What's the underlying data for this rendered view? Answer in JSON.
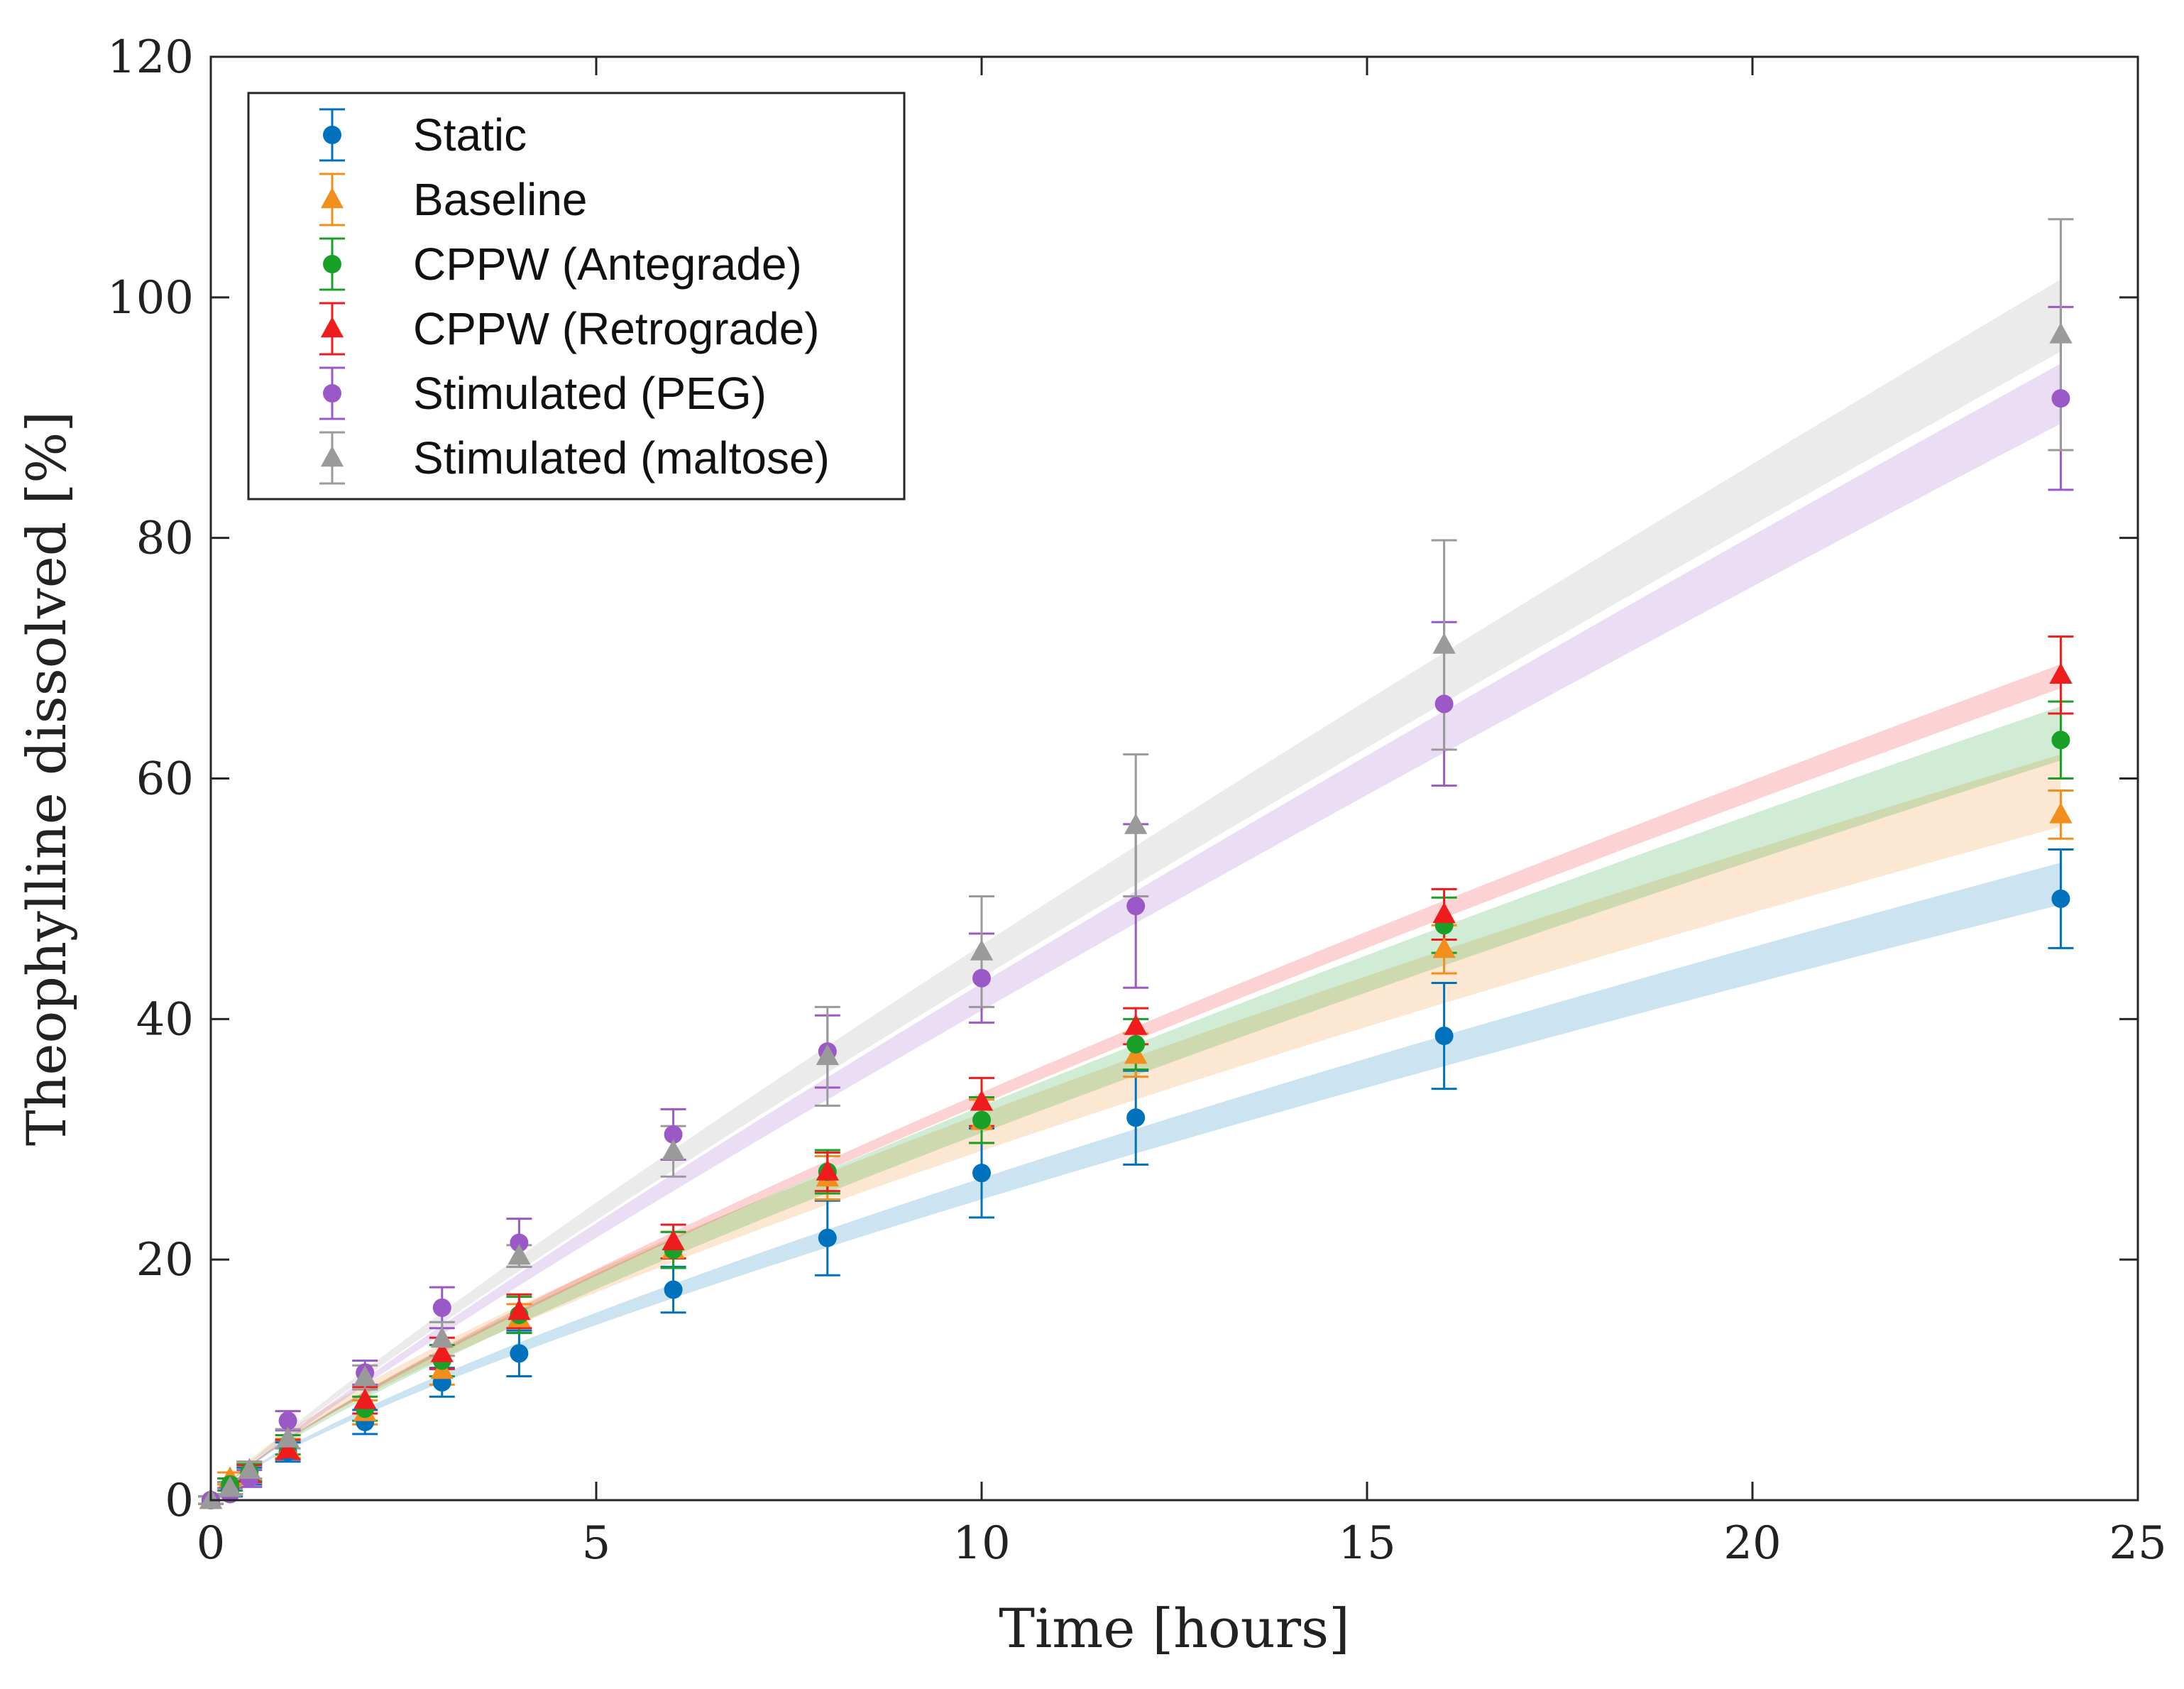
{
  "chart_data": {
    "type": "scatter",
    "title": "",
    "xlabel": "Time [hours]",
    "ylabel": "Theophylline dissolved [%]",
    "xlim": [
      0,
      25
    ],
    "ylim": [
      0,
      120
    ],
    "xticks": [
      0,
      5,
      10,
      15,
      20,
      25
    ],
    "yticks": [
      0,
      20,
      40,
      60,
      80,
      100,
      120
    ],
    "legend_position": "top-left",
    "series": [
      {
        "name": "Static",
        "color": "#0072BD",
        "marker": "circle",
        "x": [
          0,
          0.25,
          0.5,
          1,
          2,
          3,
          4,
          6,
          8,
          10,
          12,
          16,
          24
        ],
        "y": [
          0,
          0.8,
          2.0,
          4.0,
          6.5,
          9.8,
          12.2,
          17.5,
          21.8,
          27.2,
          31.8,
          38.6,
          50.0
        ],
        "err": [
          0.3,
          0.5,
          0.7,
          0.8,
          1.0,
          1.2,
          1.9,
          1.9,
          3.1,
          3.7,
          3.9,
          4.4,
          4.1
        ],
        "band_end": [
          49.5,
          53.0
        ],
        "band_exp": 0.78
      },
      {
        "name": "Baseline",
        "color": "#F28E1C",
        "marker": "triangle",
        "x": [
          0,
          0.25,
          0.5,
          1,
          2,
          3,
          4,
          6,
          8,
          10,
          12,
          16,
          24
        ],
        "y": [
          0,
          1.8,
          2.5,
          4.3,
          7.3,
          10.8,
          15.1,
          20.8,
          26.8,
          31.5,
          37.0,
          45.8,
          57.0
        ],
        "err": [
          0.3,
          0.5,
          0.7,
          0.8,
          1.0,
          1.2,
          1.2,
          1.5,
          1.8,
          1.8,
          1.8,
          2.0,
          2.0
        ],
        "band_end": [
          56.0,
          62.0
        ],
        "band_exp": 0.75
      },
      {
        "name": "CPPW (Antegrade)",
        "color": "#18A028",
        "marker": "circle",
        "x": [
          0,
          0.25,
          0.5,
          1,
          2,
          3,
          4,
          6,
          8,
          10,
          12,
          16,
          24
        ],
        "y": [
          0,
          1.3,
          2.3,
          4.6,
          7.6,
          11.6,
          15.4,
          20.8,
          27.3,
          31.6,
          37.9,
          47.8,
          63.2
        ],
        "err": [
          0.3,
          0.5,
          0.7,
          0.8,
          1.0,
          1.3,
          1.5,
          1.5,
          1.8,
          1.9,
          2.1,
          2.3,
          3.2
        ],
        "band_end": [
          61.5,
          66.0
        ],
        "band_exp": 0.8
      },
      {
        "name": "CPPW (Retrograde)",
        "color": "#EE1C1C",
        "marker": "triangle",
        "x": [
          0,
          0.25,
          0.5,
          1,
          2,
          3,
          4,
          6,
          8,
          10,
          12,
          16,
          24
        ],
        "y": [
          0,
          1.0,
          2.2,
          4.2,
          8.3,
          12.2,
          15.7,
          21.5,
          27.3,
          33.1,
          39.4,
          48.7,
          68.6
        ],
        "err": [
          0.3,
          0.5,
          0.7,
          0.8,
          1.1,
          1.3,
          1.4,
          1.4,
          1.6,
          2.0,
          1.5,
          2.1,
          3.2
        ],
        "band_end": [
          67.5,
          69.5
        ],
        "band_exp": 0.82
      },
      {
        "name": "Stimulated (PEG)",
        "color": "#9B59C8",
        "marker": "circle",
        "x": [
          0,
          0.25,
          0.5,
          1,
          2,
          3,
          4,
          6,
          8,
          10,
          12,
          16,
          24
        ],
        "y": [
          0,
          0.5,
          1.8,
          6.6,
          10.6,
          16.0,
          21.4,
          30.4,
          37.3,
          43.4,
          49.4,
          66.2,
          91.6
        ],
        "err": [
          0.3,
          0.5,
          0.7,
          0.8,
          1.0,
          1.7,
          2.0,
          2.1,
          3.0,
          3.7,
          6.8,
          6.8,
          7.6
        ],
        "band_end": [
          89.5,
          94.5
        ],
        "band_exp": 0.9
      },
      {
        "name": "Stimulated (maltose)",
        "color": "#9A9A9A",
        "marker": "triangle",
        "x": [
          0,
          0.25,
          0.5,
          1,
          2,
          3,
          4,
          6,
          8,
          10,
          12,
          16,
          24
        ],
        "y": [
          0,
          1.0,
          2.5,
          5.1,
          10.2,
          13.4,
          20.3,
          29.0,
          36.9,
          45.6,
          56.1,
          71.1,
          96.9
        ],
        "err": [
          0.3,
          0.5,
          0.7,
          0.8,
          1.0,
          1.4,
          0.9,
          2.1,
          4.1,
          4.6,
          5.9,
          8.7,
          9.6
        ],
        "band_end": [
          95.5,
          101.5
        ],
        "band_exp": 0.9
      }
    ]
  }
}
